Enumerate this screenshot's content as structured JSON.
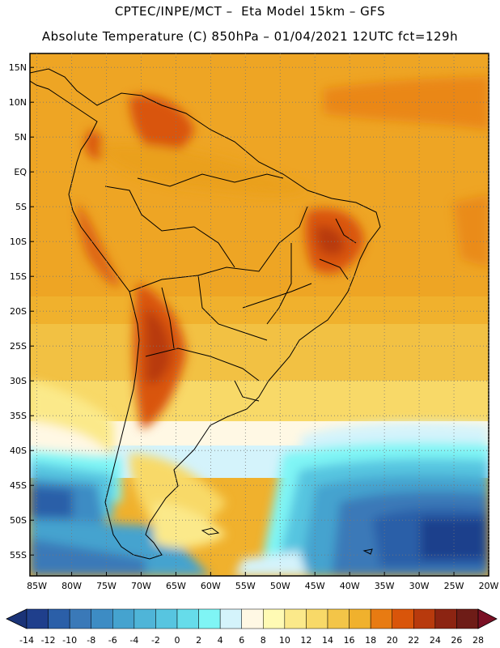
{
  "header": {
    "line1": "CPTEC/INPE/MCT –  Eta Model 15km – GFS",
    "line2": "Absolute Temperature (C) 850hPa – 01/04/2021 12UTC fct=129h"
  },
  "map": {
    "lat_labels": [
      "15N",
      "10N",
      "5N",
      "EQ",
      "5S",
      "10S",
      "15S",
      "20S",
      "25S",
      "30S",
      "35S",
      "40S",
      "45S",
      "50S",
      "55S"
    ],
    "lon_labels": [
      "85W",
      "80W",
      "75W",
      "70W",
      "65W",
      "60W",
      "55W",
      "50W",
      "45W",
      "40W",
      "35W",
      "30W",
      "25W",
      "20W"
    ],
    "lon_range": [
      -86,
      -20
    ],
    "lat_range": [
      -58,
      17
    ],
    "gridlines": "dotted"
  },
  "colorbar": {
    "labels": [
      "-14",
      "-12",
      "-10",
      "-8",
      "-6",
      "-4",
      "-2",
      "0",
      "2",
      "4",
      "6",
      "8",
      "10",
      "12",
      "14",
      "16",
      "18",
      "20",
      "22",
      "24",
      "26",
      "28"
    ],
    "colors": [
      "#1f3f8c",
      "#2b5fa8",
      "#3a79b8",
      "#3d8cc4",
      "#45a3cf",
      "#4fb5d8",
      "#57c5e0",
      "#66dcea",
      "#7ff5f5",
      "#d4f3fb",
      "#fff8e4",
      "#fffab4",
      "#fbe98a",
      "#f8d968",
      "#f3c548",
      "#f0b12d",
      "#e87b12",
      "#d9550a",
      "#b83a0d",
      "#8c2412",
      "#6e1c17"
    ],
    "low_arrow_color": "#1a3377",
    "high_arrow_color": "#7a1024"
  }
}
